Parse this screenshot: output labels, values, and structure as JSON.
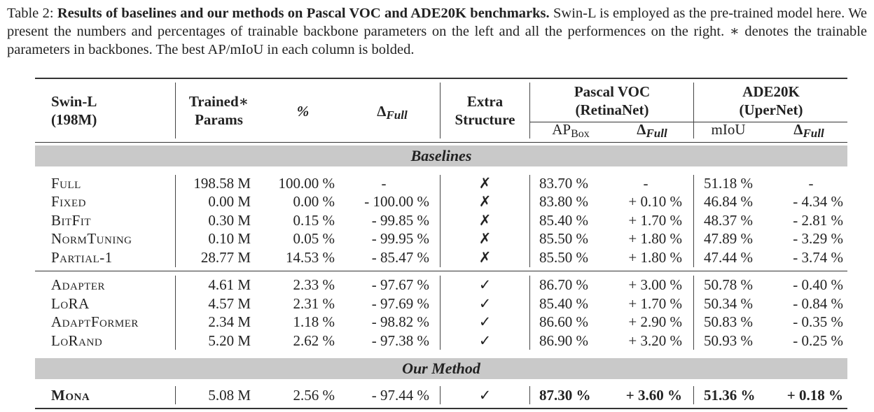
{
  "caption": {
    "label": "Table 2:",
    "title": "Results of baselines and our methods on Pascal VOC and ADE20K benchmarks.",
    "body": "Swin-L is employed as the pre-trained model here. We present the numbers and percentages of trainable backbone parameters on the left and all the performences on the right. ∗ denotes the trainable parameters in backbones. The best AP/mIoU in each column is bolded."
  },
  "header": {
    "model_line1": "Swin-L",
    "model_line2": "(198M)",
    "trained_line1": "Trained∗",
    "trained_line2": "Params",
    "percent": "%",
    "delta_sym": "Δ",
    "delta_sub": "Full",
    "extra_line1": "Extra",
    "extra_line2": "Structure",
    "voc_line1": "Pascal VOC",
    "voc_line2": "(RetinaNet)",
    "ade_line1": "ADE20K",
    "ade_line2": "(UperNet)",
    "ap": "AP",
    "ap_sub": "Box",
    "miou": "mIoU"
  },
  "sections": {
    "baselines": "Baselines",
    "ours": "Our Method"
  },
  "rows": [
    {
      "name": "Full",
      "params": "198.58 M",
      "pct": "100.00 %",
      "delta": "-",
      "extra": "✗",
      "ap": "83.70 %",
      "ap_delta": "-",
      "miou": "51.18 %",
      "miou_delta": "-"
    },
    {
      "name": "Fixed",
      "params": "0.00 M",
      "pct": "0.00 %",
      "delta": "- 100.00 %",
      "extra": "✗",
      "ap": "83.80 %",
      "ap_delta": "+ 0.10 %",
      "miou": "46.84 %",
      "miou_delta": "- 4.34 %"
    },
    {
      "name": "BitFit",
      "params": "0.30 M",
      "pct": "0.15 %",
      "delta": "- 99.85 %",
      "extra": "✗",
      "ap": "85.40 %",
      "ap_delta": "+ 1.70 %",
      "miou": "48.37 %",
      "miou_delta": "- 2.81 %"
    },
    {
      "name": "NormTuning",
      "params": "0.10 M",
      "pct": "0.05 %",
      "delta": "- 99.95 %",
      "extra": "✗",
      "ap": "85.50 %",
      "ap_delta": "+ 1.80 %",
      "miou": "47.89 %",
      "miou_delta": "- 3.29 %"
    },
    {
      "name": "Partial-1",
      "params": "28.77 M",
      "pct": "14.53 %",
      "delta": "- 85.47 %",
      "extra": "✗",
      "ap": "85.50 %",
      "ap_delta": "+ 1.80 %",
      "miou": "47.44 %",
      "miou_delta": "- 3.74 %"
    },
    {
      "name": "Adapter",
      "params": "4.61 M",
      "pct": "2.33 %",
      "delta": "- 97.67 %",
      "extra": "✓",
      "ap": "86.70 %",
      "ap_delta": "+ 3.00 %",
      "miou": "50.78 %",
      "miou_delta": "- 0.40 %"
    },
    {
      "name": "LoRA",
      "params": "4.57 M",
      "pct": "2.31 %",
      "delta": "- 97.69 %",
      "extra": "✓",
      "ap": "85.40 %",
      "ap_delta": "+ 1.70 %",
      "miou": "50.34 %",
      "miou_delta": "- 0.84 %"
    },
    {
      "name": "AdaptFormer",
      "params": "2.34 M",
      "pct": "1.18 %",
      "delta": "- 98.82 %",
      "extra": "✓",
      "ap": "86.60 %",
      "ap_delta": "+ 2.90 %",
      "miou": "50.83 %",
      "miou_delta": "- 0.35 %"
    },
    {
      "name": "LoRand",
      "params": "5.20 M",
      "pct": "2.62 %",
      "delta": "- 97.38 %",
      "extra": "✓",
      "ap": "86.90 %",
      "ap_delta": "+ 3.20 %",
      "miou": "50.93 %",
      "miou_delta": "- 0.25 %"
    },
    {
      "name": "Mona",
      "params": "5.08 M",
      "pct": "2.56 %",
      "delta": "- 97.44 %",
      "extra": "✓",
      "ap": "87.30 %",
      "ap_delta": "+ 3.60 %",
      "miou": "51.36 %",
      "miou_delta": "+ 0.18 %"
    }
  ]
}
